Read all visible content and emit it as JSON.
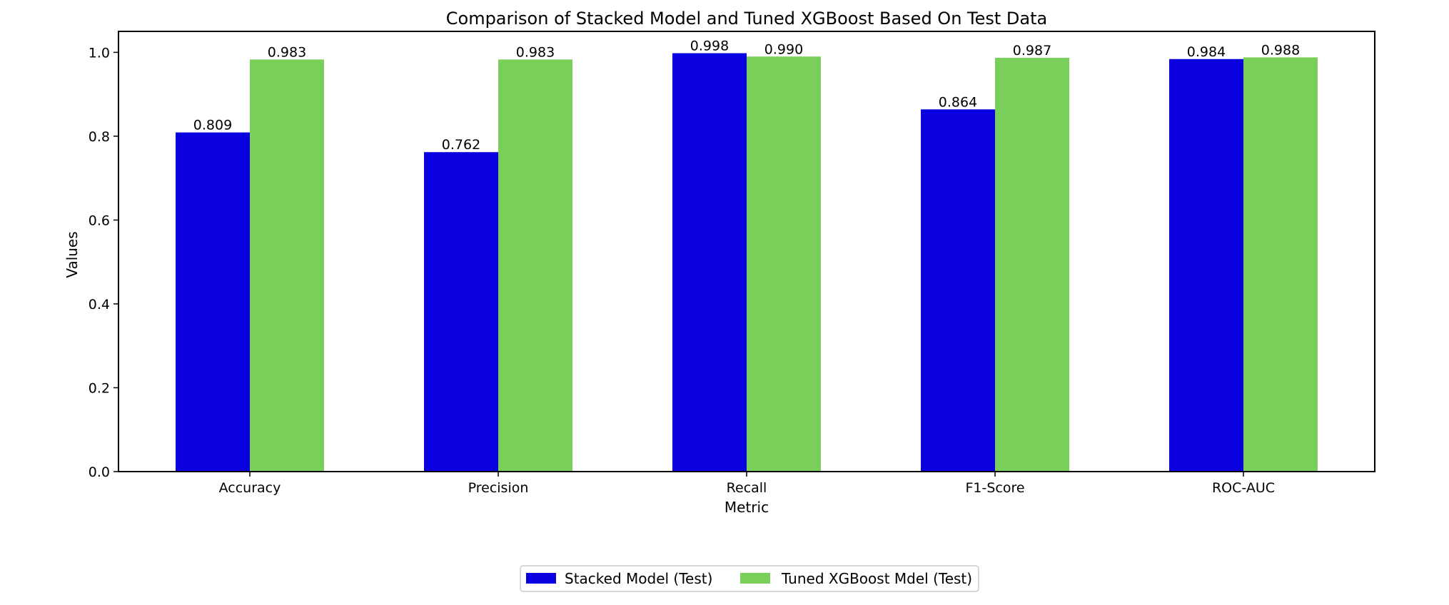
{
  "chart_data": {
    "type": "bar",
    "title": "Comparison of Stacked Model and Tuned XGBoost Based On Test Data",
    "xlabel": "Metric",
    "ylabel": "Values",
    "categories": [
      "Accuracy",
      "Precision",
      "Recall",
      "F1-Score",
      "ROC-AUC"
    ],
    "series": [
      {
        "name": "Stacked Model (Test)",
        "color": "#0b00e0",
        "values": [
          0.809,
          0.762,
          0.998,
          0.864,
          0.984
        ]
      },
      {
        "name": "Tuned XGBoost Mdel (Test)",
        "color": "#7acf5a",
        "values": [
          0.983,
          0.983,
          0.99,
          0.987,
          0.988
        ]
      }
    ],
    "ylim": [
      0,
      1.05
    ],
    "yticks": [
      0.0,
      0.2,
      0.4,
      0.6,
      0.8,
      1.0
    ],
    "ytick_labels": [
      "0.0",
      "0.2",
      "0.4",
      "0.6",
      "0.8",
      "1.0"
    ],
    "data_labels": [
      [
        "0.809",
        "0.762",
        "0.998",
        "0.864",
        "0.984"
      ],
      [
        "0.983",
        "0.983",
        "0.990",
        "0.987",
        "0.988"
      ]
    ],
    "grid": false,
    "legend_position": "bottom-center"
  }
}
